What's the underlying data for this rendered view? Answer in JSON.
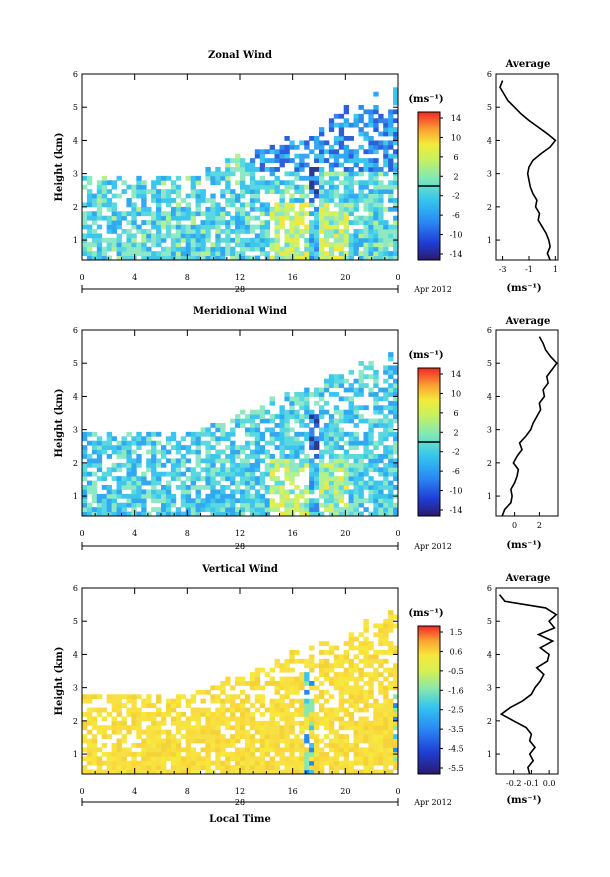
{
  "chart_data": [
    {
      "type": "heatmap",
      "title": "Zonal Wind",
      "ylabel": "Height (km)",
      "xlabel": "",
      "x_ticks": [
        "0",
        "4",
        "8",
        "12",
        "16",
        "20",
        "0"
      ],
      "xlim_hours": [
        0,
        24
      ],
      "date_label": "28",
      "month_label": "Apr 2012",
      "y_ticks": [
        "1",
        "2",
        "3",
        "4",
        "5",
        "6"
      ],
      "ylim": [
        0.4,
        6
      ],
      "colorbar": {
        "unit": "(ms⁻¹)",
        "ticks": [
          "14",
          "10",
          "6",
          "2",
          "-2",
          "-6",
          "-10",
          "-14"
        ],
        "range": [
          -16,
          16
        ],
        "zero_line": 0
      },
      "data_top_km": 5.9,
      "dense_top_km_early": 2.9,
      "average_profile": {
        "title": "Average",
        "xlabel": "(ms⁻¹)",
        "x_ticks": [
          "-3",
          "-1",
          "1"
        ],
        "xlim": [
          -3.5,
          1.2
        ],
        "y_ticks": [
          "1",
          "2",
          "3",
          "4",
          "5",
          "6"
        ],
        "height_km": [
          0.4,
          0.6,
          0.8,
          1.0,
          1.2,
          1.4,
          1.6,
          1.8,
          2.0,
          2.2,
          2.4,
          2.6,
          2.8,
          3.0,
          3.2,
          3.4,
          3.6,
          3.8,
          4.0,
          4.2,
          4.4,
          4.6,
          4.8,
          5.0,
          5.2,
          5.4,
          5.6,
          5.8
        ],
        "value": [
          0.6,
          0.4,
          0.6,
          0.5,
          0.3,
          0.0,
          -0.3,
          -0.2,
          -0.5,
          -0.4,
          -0.7,
          -0.9,
          -1.0,
          -1.1,
          -1.0,
          -0.7,
          -0.1,
          0.6,
          1.0,
          0.4,
          -0.3,
          -1.0,
          -1.6,
          -2.1,
          -2.6,
          -2.9,
          -3.2,
          -3.0
        ]
      }
    },
    {
      "type": "heatmap",
      "title": "Meridional Wind",
      "ylabel": "Height (km)",
      "xlabel": "",
      "x_ticks": [
        "0",
        "4",
        "8",
        "12",
        "16",
        "20",
        "0"
      ],
      "xlim_hours": [
        0,
        24
      ],
      "date_label": "28",
      "month_label": "Apr 2012",
      "y_ticks": [
        "1",
        "2",
        "3",
        "4",
        "5",
        "6"
      ],
      "ylim": [
        0.4,
        6
      ],
      "colorbar": {
        "unit": "(ms⁻¹)",
        "ticks": [
          "14",
          "10",
          "6",
          "2",
          "-2",
          "-6",
          "-10",
          "-14"
        ],
        "range": [
          -16,
          16
        ],
        "zero_line": 0
      },
      "data_top_km": 5.8,
      "dense_top_km_early": 2.9,
      "average_profile": {
        "title": "Average",
        "xlabel": "(ms⁻¹)",
        "x_ticks": [
          "0",
          "2"
        ],
        "xlim": [
          -1.5,
          3.5
        ],
        "y_ticks": [
          "1",
          "2",
          "3",
          "4",
          "5",
          "6"
        ],
        "height_km": [
          0.4,
          0.6,
          0.8,
          1.0,
          1.2,
          1.4,
          1.6,
          1.8,
          2.0,
          2.2,
          2.4,
          2.6,
          2.8,
          3.0,
          3.2,
          3.4,
          3.6,
          3.8,
          4.0,
          4.2,
          4.4,
          4.6,
          4.8,
          5.0,
          5.2,
          5.4,
          5.6,
          5.8
        ],
        "value": [
          -1.0,
          -0.8,
          -0.3,
          -0.2,
          -0.3,
          0.0,
          0.2,
          0.3,
          -0.1,
          0.2,
          0.6,
          0.4,
          0.9,
          1.3,
          1.5,
          1.8,
          2.1,
          2.0,
          2.4,
          2.3,
          2.7,
          2.6,
          3.0,
          3.4,
          2.9,
          2.5,
          2.3,
          2.0
        ]
      }
    },
    {
      "type": "heatmap",
      "title": "Vertical Wind",
      "ylabel": "Height (km)",
      "xlabel": "Local Time",
      "x_ticks": [
        "0",
        "4",
        "8",
        "12",
        "16",
        "20",
        "0"
      ],
      "xlim_hours": [
        0,
        24
      ],
      "date_label": "28",
      "month_label": "Apr 2012",
      "y_ticks": [
        "1",
        "2",
        "3",
        "4",
        "5",
        "6"
      ],
      "ylim": [
        0.4,
        6
      ],
      "colorbar": {
        "unit": "(ms⁻¹)",
        "ticks": [
          "1.5",
          "0.6",
          "-0.5",
          "-1.6",
          "-2.5",
          "-3.5",
          "-4.5",
          "-5.5"
        ],
        "range": [
          -6,
          2
        ]
      },
      "data_top_km": 5.6,
      "dense_top_km_early": 2.8,
      "average_profile": {
        "title": "Average",
        "xlabel": "(ms⁻¹)",
        "x_ticks": [
          "-0.2",
          "-0.1",
          "0.0"
        ],
        "xlim": [
          -0.3,
          0.05
        ],
        "y_ticks": [
          "1",
          "2",
          "3",
          "4",
          "5",
          "6"
        ],
        "height_km": [
          0.4,
          0.6,
          0.8,
          1.0,
          1.2,
          1.4,
          1.6,
          1.8,
          2.0,
          2.2,
          2.4,
          2.6,
          2.8,
          3.0,
          3.2,
          3.4,
          3.6,
          3.8,
          4.0,
          4.2,
          4.4,
          4.6,
          4.8,
          5.0,
          5.2,
          5.4,
          5.6,
          5.8
        ],
        "value": [
          -0.11,
          -0.12,
          -0.09,
          -0.11,
          -0.08,
          -0.11,
          -0.1,
          -0.13,
          -0.2,
          -0.27,
          -0.22,
          -0.15,
          -0.1,
          -0.08,
          -0.05,
          -0.03,
          -0.07,
          -0.01,
          0.0,
          -0.05,
          0.02,
          -0.06,
          0.03,
          0.0,
          0.04,
          -0.02,
          -0.25,
          -0.28
        ]
      }
    }
  ]
}
